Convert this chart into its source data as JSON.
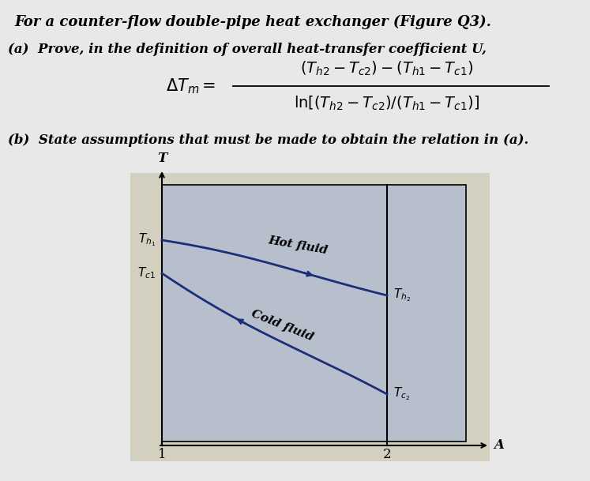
{
  "page_bg": "#e8e8e8",
  "graph_bg": "#b8bfcc",
  "graph_outer_bg": "#d4d0c0",
  "title_line1": "For a counter-flow double-pipe heat exchanger (Figure Q3).",
  "part_a_text": "(a)  Prove, in the definition of overall heat-transfer coefficient U,",
  "part_b_text": "(b)  State assumptions that must be made to obtain the relation in (a).",
  "hot_fluid_label": "Hot fluid",
  "cold_fluid_label": "Cold fluid",
  "curve_color": "#1a2e7a",
  "text_color": "#000000",
  "font_size_title": 13,
  "font_size_body": 12,
  "font_size_formula": 13,
  "font_size_graph": 11
}
